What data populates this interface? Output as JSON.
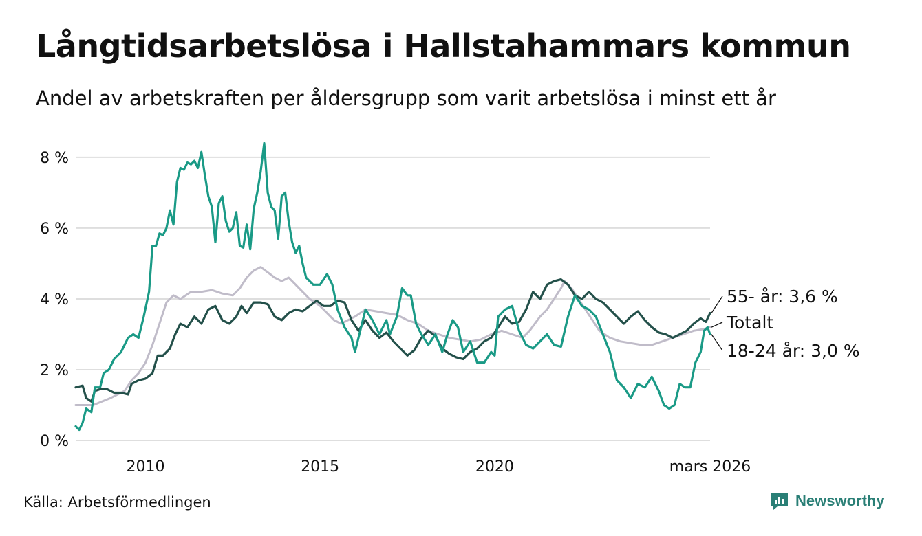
{
  "title": "Långtidsarbetslösa i Hallstahammars kommun",
  "subtitle": "Andel av arbetskraften per åldersgrupp som varit arbetslösa i minst ett år",
  "source": "Källa: Arbetsförmedlingen",
  "brand": {
    "name": "Newsworthy",
    "icon": "newsworthy-logo-icon"
  },
  "colors": {
    "total": "#c0bcc9",
    "age55": "#23504a",
    "age1824": "#1a9a86",
    "grid": "#dedede"
  },
  "chart_data": {
    "type": "line",
    "title": "Långtidsarbetslösa i Hallstahammars kommun",
    "xlabel": "",
    "ylabel": "",
    "ylim": [
      0,
      8.6
    ],
    "xlim": [
      2008.0,
      2026.17
    ],
    "yticks": [
      {
        "value": 0,
        "label": "0 %"
      },
      {
        "value": 2,
        "label": "2 %"
      },
      {
        "value": 4,
        "label": "4 %"
      },
      {
        "value": 6,
        "label": "6 %"
      },
      {
        "value": 8,
        "label": "8 %"
      }
    ],
    "xticks": [
      {
        "value": 2010,
        "label": "2010"
      },
      {
        "value": 2015,
        "label": "2015"
      },
      {
        "value": 2020,
        "label": "2020"
      },
      {
        "value": 2026.17,
        "label": "mars 2026"
      }
    ],
    "series": [
      {
        "name": "Totalt",
        "end_label": "Totalt",
        "points": [
          [
            2008.0,
            1.0
          ],
          [
            2008.5,
            1.0
          ],
          [
            2009.0,
            1.2
          ],
          [
            2009.4,
            1.4
          ],
          [
            2009.6,
            1.7
          ],
          [
            2009.8,
            1.9
          ],
          [
            2010.0,
            2.2
          ],
          [
            2010.2,
            2.7
          ],
          [
            2010.4,
            3.3
          ],
          [
            2010.6,
            3.9
          ],
          [
            2010.8,
            4.1
          ],
          [
            2011.0,
            4.0
          ],
          [
            2011.3,
            4.2
          ],
          [
            2011.6,
            4.2
          ],
          [
            2011.9,
            4.25
          ],
          [
            2012.2,
            4.15
          ],
          [
            2012.5,
            4.1
          ],
          [
            2012.7,
            4.3
          ],
          [
            2012.9,
            4.6
          ],
          [
            2013.1,
            4.8
          ],
          [
            2013.3,
            4.9
          ],
          [
            2013.5,
            4.75
          ],
          [
            2013.7,
            4.6
          ],
          [
            2013.9,
            4.5
          ],
          [
            2014.1,
            4.6
          ],
          [
            2014.3,
            4.4
          ],
          [
            2014.5,
            4.2
          ],
          [
            2014.7,
            4.0
          ],
          [
            2015.0,
            3.8
          ],
          [
            2015.2,
            3.6
          ],
          [
            2015.4,
            3.4
          ],
          [
            2015.6,
            3.3
          ],
          [
            2015.8,
            3.4
          ],
          [
            2016.0,
            3.5
          ],
          [
            2016.3,
            3.7
          ],
          [
            2016.6,
            3.65
          ],
          [
            2016.9,
            3.6
          ],
          [
            2017.2,
            3.55
          ],
          [
            2017.5,
            3.4
          ],
          [
            2017.8,
            3.3
          ],
          [
            2018.1,
            3.1
          ],
          [
            2018.4,
            3.0
          ],
          [
            2018.7,
            2.9
          ],
          [
            2019.0,
            2.85
          ],
          [
            2019.3,
            2.8
          ],
          [
            2019.6,
            2.85
          ],
          [
            2019.9,
            3.0
          ],
          [
            2020.2,
            3.1
          ],
          [
            2020.5,
            3.0
          ],
          [
            2020.8,
            2.9
          ],
          [
            2021.0,
            3.1
          ],
          [
            2021.3,
            3.5
          ],
          [
            2021.5,
            3.7
          ],
          [
            2021.7,
            4.0
          ],
          [
            2021.9,
            4.3
          ],
          [
            2022.0,
            4.5
          ],
          [
            2022.2,
            4.3
          ],
          [
            2022.4,
            4.0
          ],
          [
            2022.6,
            3.7
          ],
          [
            2022.8,
            3.4
          ],
          [
            2023.0,
            3.1
          ],
          [
            2023.3,
            2.9
          ],
          [
            2023.6,
            2.8
          ],
          [
            2023.9,
            2.75
          ],
          [
            2024.2,
            2.7
          ],
          [
            2024.5,
            2.7
          ],
          [
            2024.8,
            2.8
          ],
          [
            2025.1,
            2.9
          ],
          [
            2025.4,
            3.0
          ],
          [
            2025.7,
            3.1
          ],
          [
            2026.0,
            3.15
          ],
          [
            2026.17,
            3.2
          ]
        ]
      },
      {
        "name": "55- år",
        "end_label": "55- år: 3,6 %",
        "points": [
          [
            2008.0,
            1.5
          ],
          [
            2008.2,
            1.55
          ],
          [
            2008.3,
            1.2
          ],
          [
            2008.45,
            1.1
          ],
          [
            2008.55,
            1.4
          ],
          [
            2008.7,
            1.45
          ],
          [
            2008.9,
            1.45
          ],
          [
            2009.1,
            1.35
          ],
          [
            2009.3,
            1.35
          ],
          [
            2009.5,
            1.3
          ],
          [
            2009.6,
            1.6
          ],
          [
            2009.8,
            1.7
          ],
          [
            2010.0,
            1.75
          ],
          [
            2010.2,
            1.9
          ],
          [
            2010.35,
            2.4
          ],
          [
            2010.5,
            2.4
          ],
          [
            2010.7,
            2.6
          ],
          [
            2010.85,
            3.0
          ],
          [
            2011.0,
            3.3
          ],
          [
            2011.2,
            3.2
          ],
          [
            2011.4,
            3.5
          ],
          [
            2011.6,
            3.3
          ],
          [
            2011.8,
            3.7
          ],
          [
            2012.0,
            3.8
          ],
          [
            2012.2,
            3.4
          ],
          [
            2012.4,
            3.3
          ],
          [
            2012.6,
            3.5
          ],
          [
            2012.75,
            3.8
          ],
          [
            2012.9,
            3.6
          ],
          [
            2013.1,
            3.9
          ],
          [
            2013.3,
            3.9
          ],
          [
            2013.5,
            3.85
          ],
          [
            2013.7,
            3.5
          ],
          [
            2013.9,
            3.4
          ],
          [
            2014.1,
            3.6
          ],
          [
            2014.3,
            3.7
          ],
          [
            2014.5,
            3.65
          ],
          [
            2014.7,
            3.8
          ],
          [
            2014.9,
            3.95
          ],
          [
            2015.1,
            3.8
          ],
          [
            2015.3,
            3.8
          ],
          [
            2015.5,
            3.95
          ],
          [
            2015.7,
            3.9
          ],
          [
            2015.9,
            3.4
          ],
          [
            2016.1,
            3.1
          ],
          [
            2016.3,
            3.4
          ],
          [
            2016.5,
            3.1
          ],
          [
            2016.7,
            2.9
          ],
          [
            2016.9,
            3.05
          ],
          [
            2017.1,
            2.8
          ],
          [
            2017.3,
            2.6
          ],
          [
            2017.5,
            2.4
          ],
          [
            2017.7,
            2.55
          ],
          [
            2017.9,
            2.9
          ],
          [
            2018.1,
            3.1
          ],
          [
            2018.3,
            2.95
          ],
          [
            2018.5,
            2.6
          ],
          [
            2018.7,
            2.45
          ],
          [
            2018.9,
            2.35
          ],
          [
            2019.1,
            2.3
          ],
          [
            2019.3,
            2.5
          ],
          [
            2019.5,
            2.6
          ],
          [
            2019.7,
            2.8
          ],
          [
            2019.9,
            2.9
          ],
          [
            2020.1,
            3.2
          ],
          [
            2020.3,
            3.5
          ],
          [
            2020.5,
            3.3
          ],
          [
            2020.7,
            3.35
          ],
          [
            2020.9,
            3.7
          ],
          [
            2021.1,
            4.2
          ],
          [
            2021.3,
            4.0
          ],
          [
            2021.5,
            4.4
          ],
          [
            2021.7,
            4.5
          ],
          [
            2021.9,
            4.55
          ],
          [
            2022.1,
            4.4
          ],
          [
            2022.3,
            4.1
          ],
          [
            2022.5,
            4.0
          ],
          [
            2022.7,
            4.2
          ],
          [
            2022.9,
            4.0
          ],
          [
            2023.1,
            3.9
          ],
          [
            2023.3,
            3.7
          ],
          [
            2023.5,
            3.5
          ],
          [
            2023.7,
            3.3
          ],
          [
            2023.9,
            3.5
          ],
          [
            2024.1,
            3.65
          ],
          [
            2024.3,
            3.4
          ],
          [
            2024.5,
            3.2
          ],
          [
            2024.7,
            3.05
          ],
          [
            2024.9,
            3.0
          ],
          [
            2025.1,
            2.9
          ],
          [
            2025.3,
            3.0
          ],
          [
            2025.5,
            3.1
          ],
          [
            2025.7,
            3.3
          ],
          [
            2025.9,
            3.45
          ],
          [
            2026.05,
            3.35
          ],
          [
            2026.17,
            3.6
          ]
        ]
      },
      {
        "name": "18-24 år",
        "end_label": "18-24 år: 3,0 %",
        "points": [
          [
            2008.0,
            0.4
          ],
          [
            2008.1,
            0.3
          ],
          [
            2008.2,
            0.5
          ],
          [
            2008.3,
            0.9
          ],
          [
            2008.45,
            0.8
          ],
          [
            2008.55,
            1.5
          ],
          [
            2008.7,
            1.5
          ],
          [
            2008.8,
            1.9
          ],
          [
            2008.95,
            2.0
          ],
          [
            2009.1,
            2.3
          ],
          [
            2009.3,
            2.5
          ],
          [
            2009.5,
            2.9
          ],
          [
            2009.65,
            3.0
          ],
          [
            2009.8,
            2.9
          ],
          [
            2009.95,
            3.5
          ],
          [
            2010.1,
            4.2
          ],
          [
            2010.2,
            5.5
          ],
          [
            2010.3,
            5.5
          ],
          [
            2010.4,
            5.85
          ],
          [
            2010.5,
            5.8
          ],
          [
            2010.6,
            6.0
          ],
          [
            2010.7,
            6.5
          ],
          [
            2010.8,
            6.1
          ],
          [
            2010.9,
            7.3
          ],
          [
            2011.0,
            7.7
          ],
          [
            2011.1,
            7.65
          ],
          [
            2011.2,
            7.85
          ],
          [
            2011.3,
            7.8
          ],
          [
            2011.4,
            7.9
          ],
          [
            2011.5,
            7.7
          ],
          [
            2011.6,
            8.15
          ],
          [
            2011.7,
            7.5
          ],
          [
            2011.8,
            6.9
          ],
          [
            2011.9,
            6.6
          ],
          [
            2012.0,
            5.6
          ],
          [
            2012.1,
            6.7
          ],
          [
            2012.2,
            6.9
          ],
          [
            2012.3,
            6.2
          ],
          [
            2012.4,
            5.9
          ],
          [
            2012.5,
            6.0
          ],
          [
            2012.6,
            6.45
          ],
          [
            2012.7,
            5.5
          ],
          [
            2012.8,
            5.45
          ],
          [
            2012.9,
            6.1
          ],
          [
            2013.0,
            5.4
          ],
          [
            2013.1,
            6.55
          ],
          [
            2013.2,
            7.0
          ],
          [
            2013.3,
            7.6
          ],
          [
            2013.4,
            8.4
          ],
          [
            2013.5,
            7.0
          ],
          [
            2013.6,
            6.6
          ],
          [
            2013.7,
            6.5
          ],
          [
            2013.8,
            5.7
          ],
          [
            2013.9,
            6.9
          ],
          [
            2014.0,
            7.0
          ],
          [
            2014.1,
            6.2
          ],
          [
            2014.2,
            5.6
          ],
          [
            2014.3,
            5.3
          ],
          [
            2014.4,
            5.5
          ],
          [
            2014.5,
            5.0
          ],
          [
            2014.6,
            4.6
          ],
          [
            2014.8,
            4.4
          ],
          [
            2015.0,
            4.4
          ],
          [
            2015.2,
            4.7
          ],
          [
            2015.35,
            4.4
          ],
          [
            2015.5,
            3.7
          ],
          [
            2015.7,
            3.2
          ],
          [
            2015.9,
            2.9
          ],
          [
            2016.0,
            2.5
          ],
          [
            2016.1,
            2.9
          ],
          [
            2016.3,
            3.7
          ],
          [
            2016.5,
            3.4
          ],
          [
            2016.7,
            3.0
          ],
          [
            2016.9,
            3.4
          ],
          [
            2017.0,
            3.0
          ],
          [
            2017.2,
            3.5
          ],
          [
            2017.35,
            4.3
          ],
          [
            2017.5,
            4.1
          ],
          [
            2017.6,
            4.1
          ],
          [
            2017.75,
            3.3
          ],
          [
            2017.9,
            3.0
          ],
          [
            2018.1,
            2.7
          ],
          [
            2018.3,
            3.0
          ],
          [
            2018.5,
            2.5
          ],
          [
            2018.65,
            3.0
          ],
          [
            2018.8,
            3.4
          ],
          [
            2018.95,
            3.2
          ],
          [
            2019.1,
            2.5
          ],
          [
            2019.3,
            2.8
          ],
          [
            2019.5,
            2.2
          ],
          [
            2019.7,
            2.2
          ],
          [
            2019.9,
            2.5
          ],
          [
            2020.0,
            2.4
          ],
          [
            2020.1,
            3.5
          ],
          [
            2020.3,
            3.7
          ],
          [
            2020.5,
            3.8
          ],
          [
            2020.7,
            3.1
          ],
          [
            2020.9,
            2.7
          ],
          [
            2021.1,
            2.6
          ],
          [
            2021.3,
            2.8
          ],
          [
            2021.5,
            3.0
          ],
          [
            2021.7,
            2.7
          ],
          [
            2021.9,
            2.65
          ],
          [
            2022.1,
            3.5
          ],
          [
            2022.3,
            4.1
          ],
          [
            2022.5,
            3.8
          ],
          [
            2022.7,
            3.7
          ],
          [
            2022.9,
            3.5
          ],
          [
            2023.1,
            3.0
          ],
          [
            2023.3,
            2.5
          ],
          [
            2023.5,
            1.7
          ],
          [
            2023.7,
            1.5
          ],
          [
            2023.9,
            1.2
          ],
          [
            2024.1,
            1.6
          ],
          [
            2024.3,
            1.5
          ],
          [
            2024.5,
            1.8
          ],
          [
            2024.7,
            1.4
          ],
          [
            2024.85,
            1.0
          ],
          [
            2025.0,
            0.9
          ],
          [
            2025.15,
            1.0
          ],
          [
            2025.3,
            1.6
          ],
          [
            2025.45,
            1.5
          ],
          [
            2025.6,
            1.5
          ],
          [
            2025.75,
            2.2
          ],
          [
            2025.9,
            2.5
          ],
          [
            2026.0,
            3.1
          ],
          [
            2026.1,
            3.2
          ],
          [
            2026.17,
            3.0
          ]
        ]
      }
    ]
  }
}
